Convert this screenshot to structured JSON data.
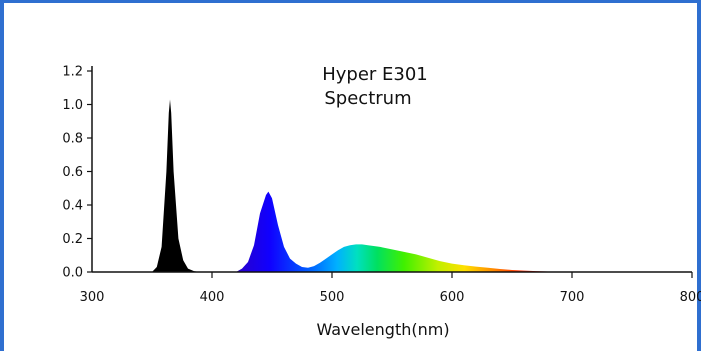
{
  "chart_data": {
    "type": "area",
    "title": "Hyper E301",
    "subtitle": "Spectrum",
    "xlabel": "Wavelength(nm)",
    "ylabel": "",
    "xlim": [
      300,
      800
    ],
    "ylim": [
      0,
      1.2
    ],
    "xticks": [
      "300",
      "400",
      "500",
      "600",
      "700",
      "800"
    ],
    "yticks": [
      "0.0",
      "0.2",
      "0.4",
      "0.6",
      "0.8",
      "1.0",
      "1.2"
    ],
    "grid": false,
    "series": [
      {
        "x": [
          350,
          354,
          358,
          362,
          364,
          365,
          366,
          368,
          372,
          376,
          380,
          385,
          390
        ],
        "y": [
          0.0,
          0.03,
          0.15,
          0.6,
          0.95,
          1.03,
          0.95,
          0.6,
          0.2,
          0.07,
          0.02,
          0.005,
          0.0
        ],
        "fill": "#000000"
      },
      {
        "x": [
          420,
          425,
          430,
          435,
          440,
          445,
          447,
          450,
          455,
          460,
          465,
          470,
          475,
          480,
          485,
          490,
          495,
          500,
          505,
          510,
          515,
          520,
          525,
          530,
          540,
          550,
          560,
          570,
          580,
          590,
          600,
          610,
          620,
          630,
          640,
          650,
          660,
          670,
          680,
          690,
          700
        ],
        "y": [
          0.0,
          0.02,
          0.06,
          0.16,
          0.35,
          0.46,
          0.48,
          0.44,
          0.28,
          0.15,
          0.08,
          0.05,
          0.03,
          0.025,
          0.035,
          0.055,
          0.08,
          0.105,
          0.13,
          0.15,
          0.16,
          0.165,
          0.165,
          0.16,
          0.15,
          0.135,
          0.12,
          0.105,
          0.085,
          0.065,
          0.05,
          0.04,
          0.032,
          0.025,
          0.018,
          0.012,
          0.008,
          0.005,
          0.003,
          0.001,
          0.0
        ],
        "fill": "spectrum-gradient"
      }
    ]
  }
}
